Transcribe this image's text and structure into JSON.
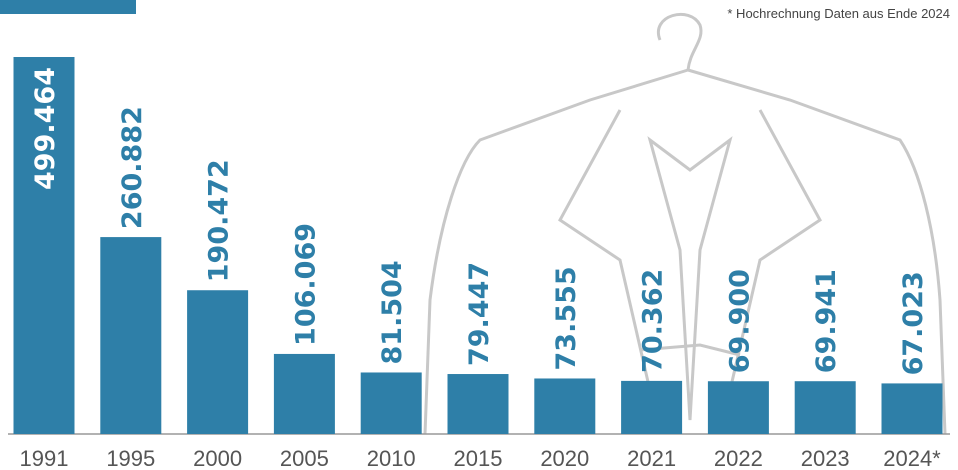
{
  "chart_data": {
    "type": "bar",
    "note": "* Hochrechnung Daten aus Ende 2024",
    "categories": [
      "1991",
      "1995",
      "2000",
      "2005",
      "2010",
      "2015",
      "2020",
      "2021",
      "2022",
      "2023",
      "2024*"
    ],
    "values": [
      499464,
      260882,
      190472,
      106069,
      81504,
      79447,
      73555,
      70362,
      69900,
      69941,
      67023
    ],
    "value_labels": [
      "499.464",
      "260.882",
      "190.472",
      "106.069",
      "81.504",
      "79.447",
      "73.555",
      "70.362",
      "69.900",
      "69.941",
      "67.023"
    ],
    "color": "#2e7fa8"
  }
}
